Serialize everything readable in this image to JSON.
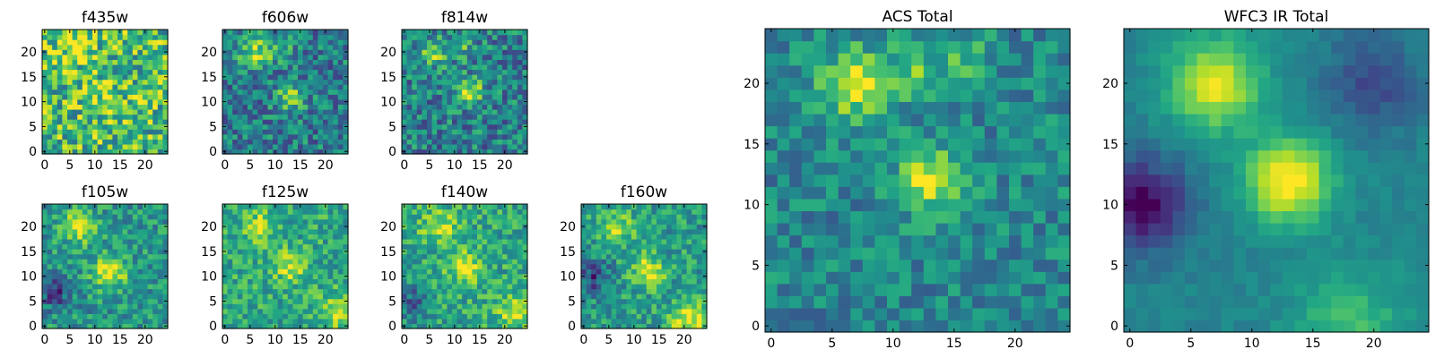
{
  "chart_data": [
    {
      "type": "heatmap",
      "title": "f435w",
      "grid": false,
      "colormap": "viridis",
      "xlim": [
        -0.5,
        24.5
      ],
      "ylim": [
        -0.5,
        24.5
      ],
      "x_ticks": [
        0,
        5,
        10,
        15,
        20
      ],
      "y_ticks": [
        0,
        5,
        10,
        15,
        20
      ],
      "shape": [
        25,
        25
      ],
      "features": [
        {
          "x": 6,
          "y": 21,
          "intensity": 0.15,
          "sigma": 3
        },
        {
          "x": 12,
          "y": 11,
          "intensity": 0.12,
          "sigma": 3
        }
      ],
      "base_level": 0.68,
      "noise": 0.32,
      "seed": 11
    },
    {
      "type": "heatmap",
      "title": "f606w",
      "grid": false,
      "colormap": "viridis",
      "xlim": [
        -0.5,
        24.5
      ],
      "ylim": [
        -0.5,
        24.5
      ],
      "x_ticks": [
        0,
        5,
        10,
        15,
        20
      ],
      "y_ticks": [
        0,
        5,
        10,
        15,
        20
      ],
      "shape": [
        25,
        25
      ],
      "features": [
        {
          "x": 6,
          "y": 20,
          "intensity": 0.42,
          "sigma": 2.2
        },
        {
          "x": 11,
          "y": 21,
          "intensity": 0.22,
          "sigma": 2
        },
        {
          "x": 13,
          "y": 11,
          "intensity": 0.45,
          "sigma": 1.8
        }
      ],
      "base_level": 0.42,
      "noise": 0.24,
      "seed": 23
    },
    {
      "type": "heatmap",
      "title": "f814w",
      "grid": false,
      "colormap": "viridis",
      "xlim": [
        -0.5,
        24.5
      ],
      "ylim": [
        -0.5,
        24.5
      ],
      "x_ticks": [
        0,
        5,
        10,
        15,
        20
      ],
      "y_ticks": [
        0,
        5,
        10,
        15,
        20
      ],
      "shape": [
        25,
        25
      ],
      "features": [
        {
          "x": 6,
          "y": 20,
          "intensity": 0.38,
          "sigma": 2
        },
        {
          "x": 12,
          "y": 21,
          "intensity": 0.2,
          "sigma": 2
        },
        {
          "x": 13,
          "y": 12,
          "intensity": 0.48,
          "sigma": 1.9
        }
      ],
      "base_level": 0.43,
      "noise": 0.25,
      "seed": 37
    },
    {
      "type": "heatmap",
      "title": "f105w",
      "grid": false,
      "colormap": "viridis",
      "xlim": [
        -0.5,
        24.5
      ],
      "ylim": [
        -0.5,
        24.5
      ],
      "x_ticks": [
        0,
        5,
        10,
        15,
        20
      ],
      "y_ticks": [
        0,
        5,
        10,
        15,
        20
      ],
      "shape": [
        25,
        25
      ],
      "features": [
        {
          "x": 7,
          "y": 20,
          "intensity": 0.42,
          "sigma": 2.4
        },
        {
          "x": 13,
          "y": 11,
          "intensity": 0.45,
          "sigma": 2.4
        },
        {
          "x": 2,
          "y": 7,
          "intensity": -0.35,
          "sigma": 2.2
        }
      ],
      "base_level": 0.52,
      "noise": 0.2,
      "seed": 41
    },
    {
      "type": "heatmap",
      "title": "f125w",
      "grid": false,
      "colormap": "viridis",
      "xlim": [
        -0.5,
        24.5
      ],
      "ylim": [
        -0.5,
        24.5
      ],
      "x_ticks": [
        0,
        5,
        10,
        15,
        20
      ],
      "y_ticks": [
        0,
        5,
        10,
        15,
        20
      ],
      "shape": [
        25,
        25
      ],
      "features": [
        {
          "x": 7,
          "y": 20,
          "intensity": 0.3,
          "sigma": 2.2
        },
        {
          "x": 13,
          "y": 12,
          "intensity": 0.32,
          "sigma": 2.2
        },
        {
          "x": 23,
          "y": 3,
          "intensity": 0.35,
          "sigma": 2.5
        }
      ],
      "base_level": 0.6,
      "noise": 0.2,
      "seed": 53
    },
    {
      "type": "heatmap",
      "title": "f140w",
      "grid": false,
      "colormap": "viridis",
      "xlim": [
        -0.5,
        24.5
      ],
      "ylim": [
        -0.5,
        24.5
      ],
      "x_ticks": [
        0,
        5,
        10,
        15,
        20
      ],
      "y_ticks": [
        0,
        5,
        10,
        15,
        20
      ],
      "shape": [
        25,
        25
      ],
      "features": [
        {
          "x": 7,
          "y": 20,
          "intensity": 0.3,
          "sigma": 2.4
        },
        {
          "x": 12,
          "y": 12,
          "intensity": 0.38,
          "sigma": 2.2
        },
        {
          "x": 22,
          "y": 3,
          "intensity": 0.3,
          "sigma": 2.5
        },
        {
          "x": 2,
          "y": 5,
          "intensity": -0.3,
          "sigma": 2.5
        }
      ],
      "base_level": 0.6,
      "noise": 0.2,
      "seed": 67
    },
    {
      "type": "heatmap",
      "title": "f160w",
      "grid": false,
      "colormap": "viridis",
      "xlim": [
        -0.5,
        24.5
      ],
      "ylim": [
        -0.5,
        24.5
      ],
      "x_ticks": [
        0,
        5,
        10,
        15,
        20
      ],
      "y_ticks": [
        0,
        5,
        10,
        15,
        20
      ],
      "shape": [
        25,
        25
      ],
      "features": [
        {
          "x": 7,
          "y": 20,
          "intensity": 0.3,
          "sigma": 2.4
        },
        {
          "x": 13,
          "y": 11,
          "intensity": 0.42,
          "sigma": 2.3
        },
        {
          "x": 21,
          "y": 1,
          "intensity": 0.45,
          "sigma": 2.6
        },
        {
          "x": 2,
          "y": 10,
          "intensity": -0.35,
          "sigma": 2.2
        }
      ],
      "base_level": 0.55,
      "noise": 0.2,
      "seed": 79
    },
    {
      "type": "heatmap",
      "title": "ACS Total",
      "grid": false,
      "colormap": "viridis",
      "xlim": [
        -0.5,
        24.5
      ],
      "ylim": [
        -0.5,
        24.5
      ],
      "x_ticks": [
        0,
        5,
        10,
        15,
        20
      ],
      "y_ticks": [
        0,
        5,
        10,
        15,
        20
      ],
      "shape": [
        25,
        25
      ],
      "features": [
        {
          "x": 7,
          "y": 20,
          "intensity": 0.55,
          "sigma": 1.9
        },
        {
          "x": 12,
          "y": 21,
          "intensity": 0.25,
          "sigma": 1.6
        },
        {
          "x": 13,
          "y": 12,
          "intensity": 0.5,
          "sigma": 1.8
        },
        {
          "x": 16,
          "y": 22,
          "intensity": 0.2,
          "sigma": 1.5
        }
      ],
      "base_level": 0.46,
      "noise": 0.17,
      "seed": 97
    },
    {
      "type": "heatmap",
      "title": "WFC3 IR Total",
      "grid": false,
      "colormap": "viridis",
      "xlim": [
        -0.5,
        24.5
      ],
      "ylim": [
        -0.5,
        24.5
      ],
      "x_ticks": [
        0,
        5,
        10,
        15,
        20
      ],
      "y_ticks": [
        0,
        5,
        10,
        15,
        20
      ],
      "shape": [
        25,
        25
      ],
      "features": [
        {
          "x": 7,
          "y": 20,
          "intensity": 0.52,
          "sigma": 2.6
        },
        {
          "x": 13,
          "y": 12,
          "intensity": 0.6,
          "sigma": 2.4
        },
        {
          "x": 1,
          "y": 10,
          "intensity": -0.45,
          "sigma": 2.6
        },
        {
          "x": 20,
          "y": 20,
          "intensity": -0.22,
          "sigma": 2.8
        },
        {
          "x": 18,
          "y": 0,
          "intensity": 0.25,
          "sigma": 3.2
        }
      ],
      "base_level": 0.45,
      "noise": 0.05,
      "seed": 113
    }
  ]
}
